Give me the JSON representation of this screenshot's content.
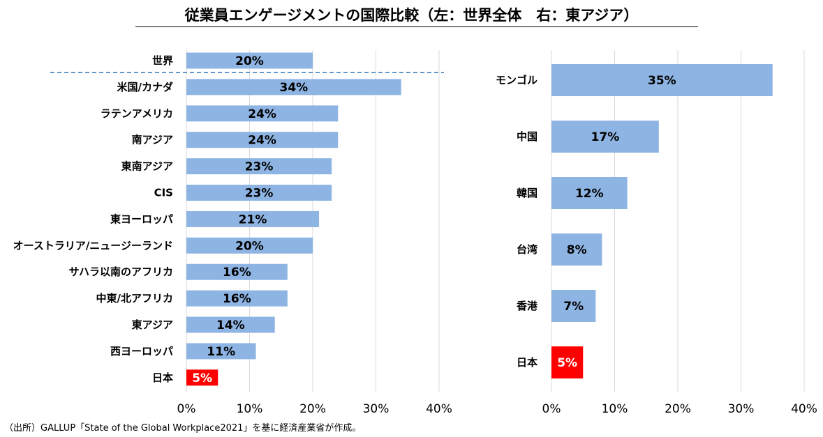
{
  "title": "従業員エンゲージメントの国際比較（左：世界全体　右：東アジア）",
  "source": "（出所）GALLUP「State of the Global Workplace2021」を基に経済産業省が作成。",
  "colors": {
    "bar": "#8EB4E3",
    "highlight": "#FF0000",
    "grid": "#D9D9D9",
    "divider": "#2E75B6"
  },
  "chart_data": [
    {
      "type": "bar",
      "orientation": "horizontal",
      "categories": [
        "世界",
        "米国/カナダ",
        "ラテンアメリカ",
        "南アジア",
        "東南アジア",
        "CIS",
        "東ヨーロッパ",
        "オーストラリア/ニュージーランド",
        "サハラ以南のアフリカ",
        "中東/北アフリカ",
        "東アジア",
        "西ヨーロッパ",
        "日本"
      ],
      "values": [
        20,
        34,
        24,
        24,
        23,
        23,
        21,
        20,
        16,
        16,
        14,
        11,
        5
      ],
      "value_labels": [
        "20%",
        "34%",
        "24%",
        "24%",
        "23%",
        "23%",
        "21%",
        "20%",
        "16%",
        "16%",
        "14%",
        "11%",
        "5%"
      ],
      "highlight": "日本",
      "xlim": [
        0,
        40
      ],
      "xticks": [
        "0%",
        "10%",
        "20%",
        "30%",
        "40%"
      ],
      "grid": true,
      "divider_after": "世界"
    },
    {
      "type": "bar",
      "orientation": "horizontal",
      "categories": [
        "モンゴル",
        "中国",
        "韓国",
        "台湾",
        "香港",
        "日本"
      ],
      "values": [
        35,
        17,
        12,
        8,
        7,
        5
      ],
      "value_labels": [
        "35%",
        "17%",
        "12%",
        "8%",
        "7%",
        "5%"
      ],
      "highlight": "日本",
      "xlim": [
        0,
        40
      ],
      "xticks": [
        "0%",
        "10%",
        "20%",
        "30%",
        "40%"
      ],
      "grid": true
    }
  ]
}
